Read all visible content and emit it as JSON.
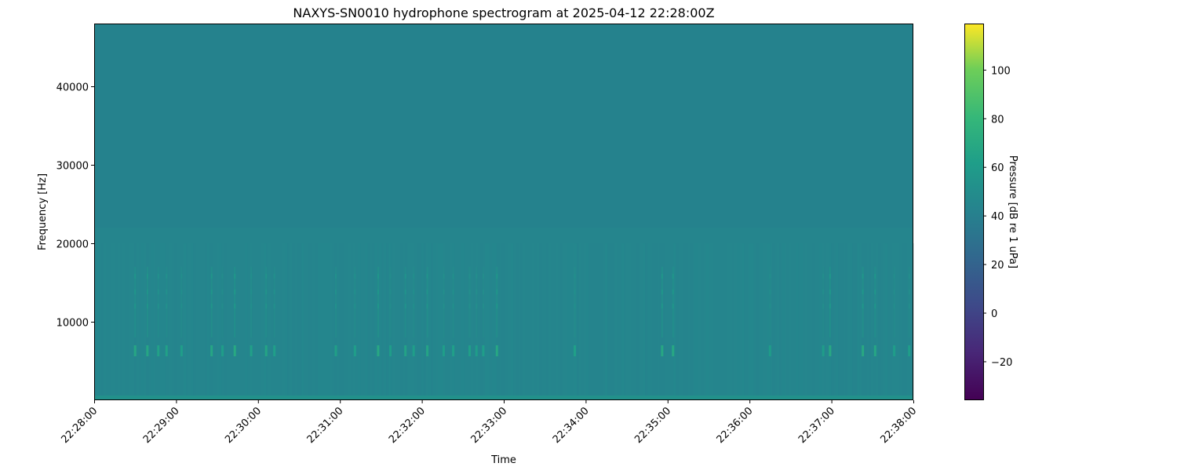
{
  "chart_data": {
    "type": "heatmap",
    "title": "NAXYS-SN0010 hydrophone spectrogram at 2025-04-12 22:28:00Z",
    "xlabel": "Time",
    "ylabel": "Frequency [Hz]",
    "xlim": [
      "22:28:00",
      "22:38:00"
    ],
    "ylim": [
      0,
      48000
    ],
    "x_ticks": [
      "22:28:00",
      "22:29:00",
      "22:30:00",
      "22:31:00",
      "22:32:00",
      "22:33:00",
      "22:34:00",
      "22:35:00",
      "22:36:00",
      "22:37:00",
      "22:38:00"
    ],
    "y_ticks": [
      10000,
      20000,
      30000,
      40000
    ],
    "colormap": "viridis",
    "colorbar": {
      "label": "Pressure [dB re 1 uPa]",
      "clim": [
        -36,
        119
      ],
      "ticks": [
        -20,
        0,
        20,
        40,
        60,
        80,
        100
      ]
    },
    "background_level_db": 44,
    "upper_band_level_db": 41,
    "tonal_band": {
      "frequency_hz": 6300,
      "peak_level_db": 70,
      "event_times": [
        "22:28:30",
        "22:28:39",
        "22:28:47",
        "22:28:53",
        "22:29:04",
        "22:29:26",
        "22:29:34",
        "22:29:43",
        "22:29:55",
        "22:30:06",
        "22:30:12",
        "22:30:57",
        "22:31:11",
        "22:31:28",
        "22:31:37",
        "22:31:48",
        "22:31:54",
        "22:32:04",
        "22:32:16",
        "22:32:23",
        "22:32:35",
        "22:32:40",
        "22:32:45",
        "22:32:55",
        "22:33:52",
        "22:34:56",
        "22:35:04",
        "22:36:15",
        "22:36:54",
        "22:36:59",
        "22:37:23",
        "22:37:32",
        "22:37:46",
        "22:37:57"
      ]
    },
    "harmonic_bands_hz": [
      12000,
      13800,
      15800
    ],
    "grid": false
  }
}
